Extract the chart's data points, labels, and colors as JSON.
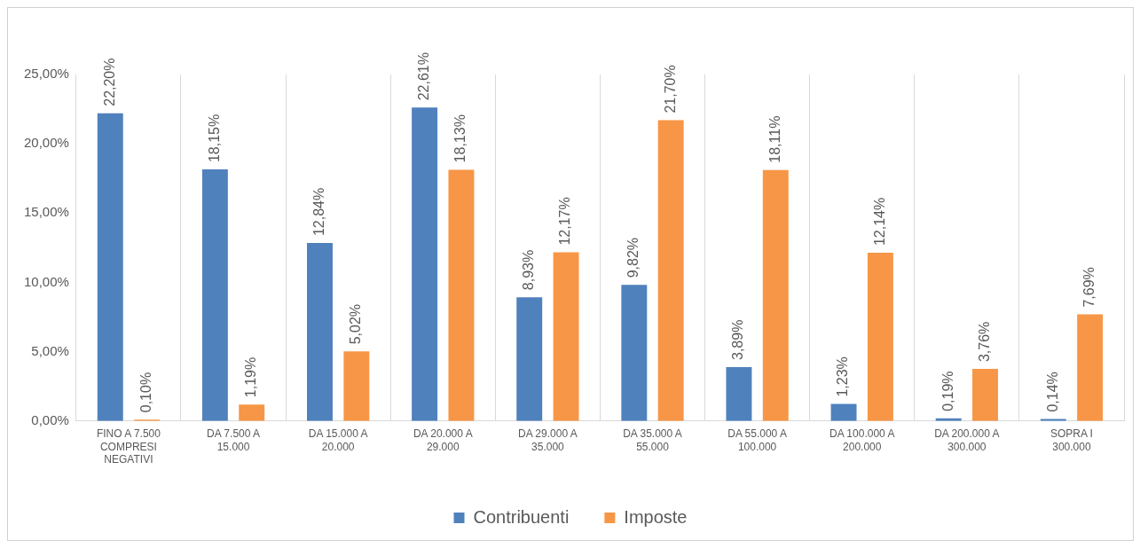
{
  "chart_data": {
    "type": "bar",
    "categories": [
      "FINO A 7.500 COMPRESI NEGATIVI",
      "DA 7.500 A 15.000",
      "DA 15.000 A 20.000",
      "DA 20.000 A 29.000",
      "DA 29.000 A 35.000",
      "DA 35.000 A 55.000",
      "DA 55.000 A 100.000",
      "DA 100.000 A 200.000",
      "DA 200.000 A 300.000",
      "SOPRA I 300.000"
    ],
    "series": [
      {
        "name": "Contribuenti",
        "color": "#4f81bd",
        "values": [
          22.2,
          18.15,
          12.84,
          22.61,
          8.93,
          9.82,
          3.89,
          1.23,
          0.19,
          0.14
        ],
        "value_labels": [
          "22,20%",
          "18,15%",
          "12,84%",
          "22,61%",
          "8,93%",
          "9,82%",
          "3,89%",
          "1,23%",
          "0,19%",
          "0,14%"
        ]
      },
      {
        "name": "Imposte",
        "color": "#f79646",
        "values": [
          0.1,
          1.19,
          5.02,
          18.13,
          12.17,
          21.7,
          18.11,
          12.14,
          3.76,
          7.69
        ],
        "value_labels": [
          "0,10%",
          "1,19%",
          "5,02%",
          "18,13%",
          "12,17%",
          "21,70%",
          "18,11%",
          "12,14%",
          "3,76%",
          "7,69%"
        ]
      }
    ],
    "ylim": [
      0,
      25
    ],
    "yticks": [
      {
        "value": 0,
        "label": "0,00%"
      },
      {
        "value": 5,
        "label": "5,00%"
      },
      {
        "value": 10,
        "label": "10,00%"
      },
      {
        "value": 15,
        "label": "15,00%"
      },
      {
        "value": 20,
        "label": "20,00%"
      },
      {
        "value": 25,
        "label": "25,00%"
      }
    ],
    "grid": "x",
    "legend": "bottom"
  }
}
